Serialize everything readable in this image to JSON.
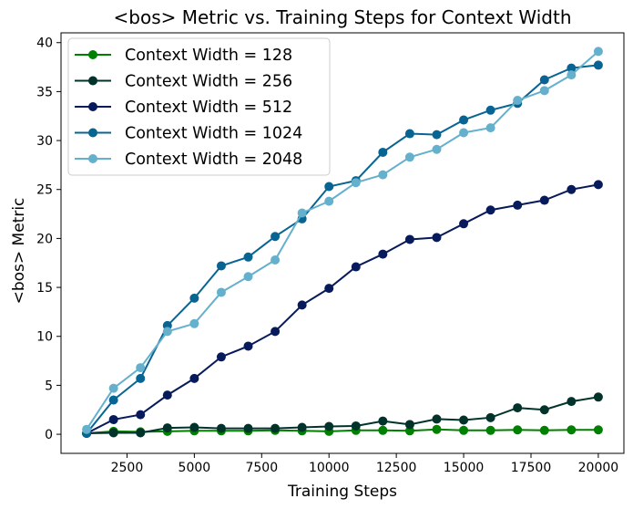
{
  "chart_data": {
    "type": "line",
    "title": "<bos> Metric vs. Training Steps for Context Width",
    "xlabel": "Training Steps",
    "ylabel": "<bos> Metric",
    "x": [
      1000,
      2000,
      3000,
      4000,
      5000,
      6000,
      7000,
      8000,
      9000,
      10000,
      11000,
      12000,
      13000,
      14000,
      15000,
      16000,
      17000,
      18000,
      19000,
      20000
    ],
    "xlim": [
      50,
      20950
    ],
    "ylim": [
      -1.95,
      41.0
    ],
    "xticks": [
      2500,
      5000,
      7500,
      10000,
      12500,
      15000,
      17500,
      20000
    ],
    "xtick_labels": [
      "2500",
      "5000",
      "7500",
      "10000",
      "12500",
      "15000",
      "17500",
      "20000"
    ],
    "yticks": [
      0,
      5,
      10,
      15,
      20,
      25,
      30,
      35,
      40
    ],
    "ytick_labels": [
      "0",
      "5",
      "10",
      "15",
      "20",
      "25",
      "30",
      "35",
      "40"
    ],
    "grid": false,
    "legend_position": "top-left",
    "series": [
      {
        "name": "Context Width = 128",
        "color": "#008000",
        "values": [
          0.1,
          0.3,
          0.25,
          0.3,
          0.35,
          0.35,
          0.35,
          0.4,
          0.35,
          0.3,
          0.4,
          0.4,
          0.35,
          0.5,
          0.4,
          0.4,
          0.45,
          0.4,
          0.45,
          0.45
        ]
      },
      {
        "name": "Context Width = 256",
        "color": "#01332b",
        "values": [
          0.1,
          0.15,
          0.15,
          0.65,
          0.7,
          0.6,
          0.6,
          0.6,
          0.7,
          0.8,
          0.85,
          1.35,
          1.0,
          1.55,
          1.45,
          1.7,
          2.7,
          2.5,
          3.35,
          3.8
        ]
      },
      {
        "name": "Context Width = 512",
        "color": "#071a5b",
        "values": [
          0.1,
          1.5,
          2.0,
          4.0,
          5.7,
          7.9,
          9.0,
          10.5,
          13.2,
          14.9,
          17.1,
          18.4,
          19.9,
          20.1,
          21.5,
          22.9,
          23.4,
          23.9,
          25.0,
          25.5
        ]
      },
      {
        "name": "Context Width = 1024",
        "color": "#086492",
        "values": [
          0.1,
          3.5,
          5.7,
          11.1,
          13.9,
          17.2,
          18.1,
          20.2,
          22.0,
          25.3,
          25.9,
          28.8,
          30.7,
          30.6,
          32.1,
          33.1,
          33.8,
          36.2,
          37.4,
          37.7
        ]
      },
      {
        "name": "Context Width = 2048",
        "color": "#65b0cc",
        "values": [
          0.5,
          4.7,
          6.8,
          10.5,
          11.3,
          14.5,
          16.1,
          17.8,
          22.6,
          23.8,
          25.7,
          26.5,
          28.3,
          29.1,
          30.8,
          31.3,
          34.1,
          35.1,
          36.7,
          39.1
        ]
      }
    ]
  }
}
